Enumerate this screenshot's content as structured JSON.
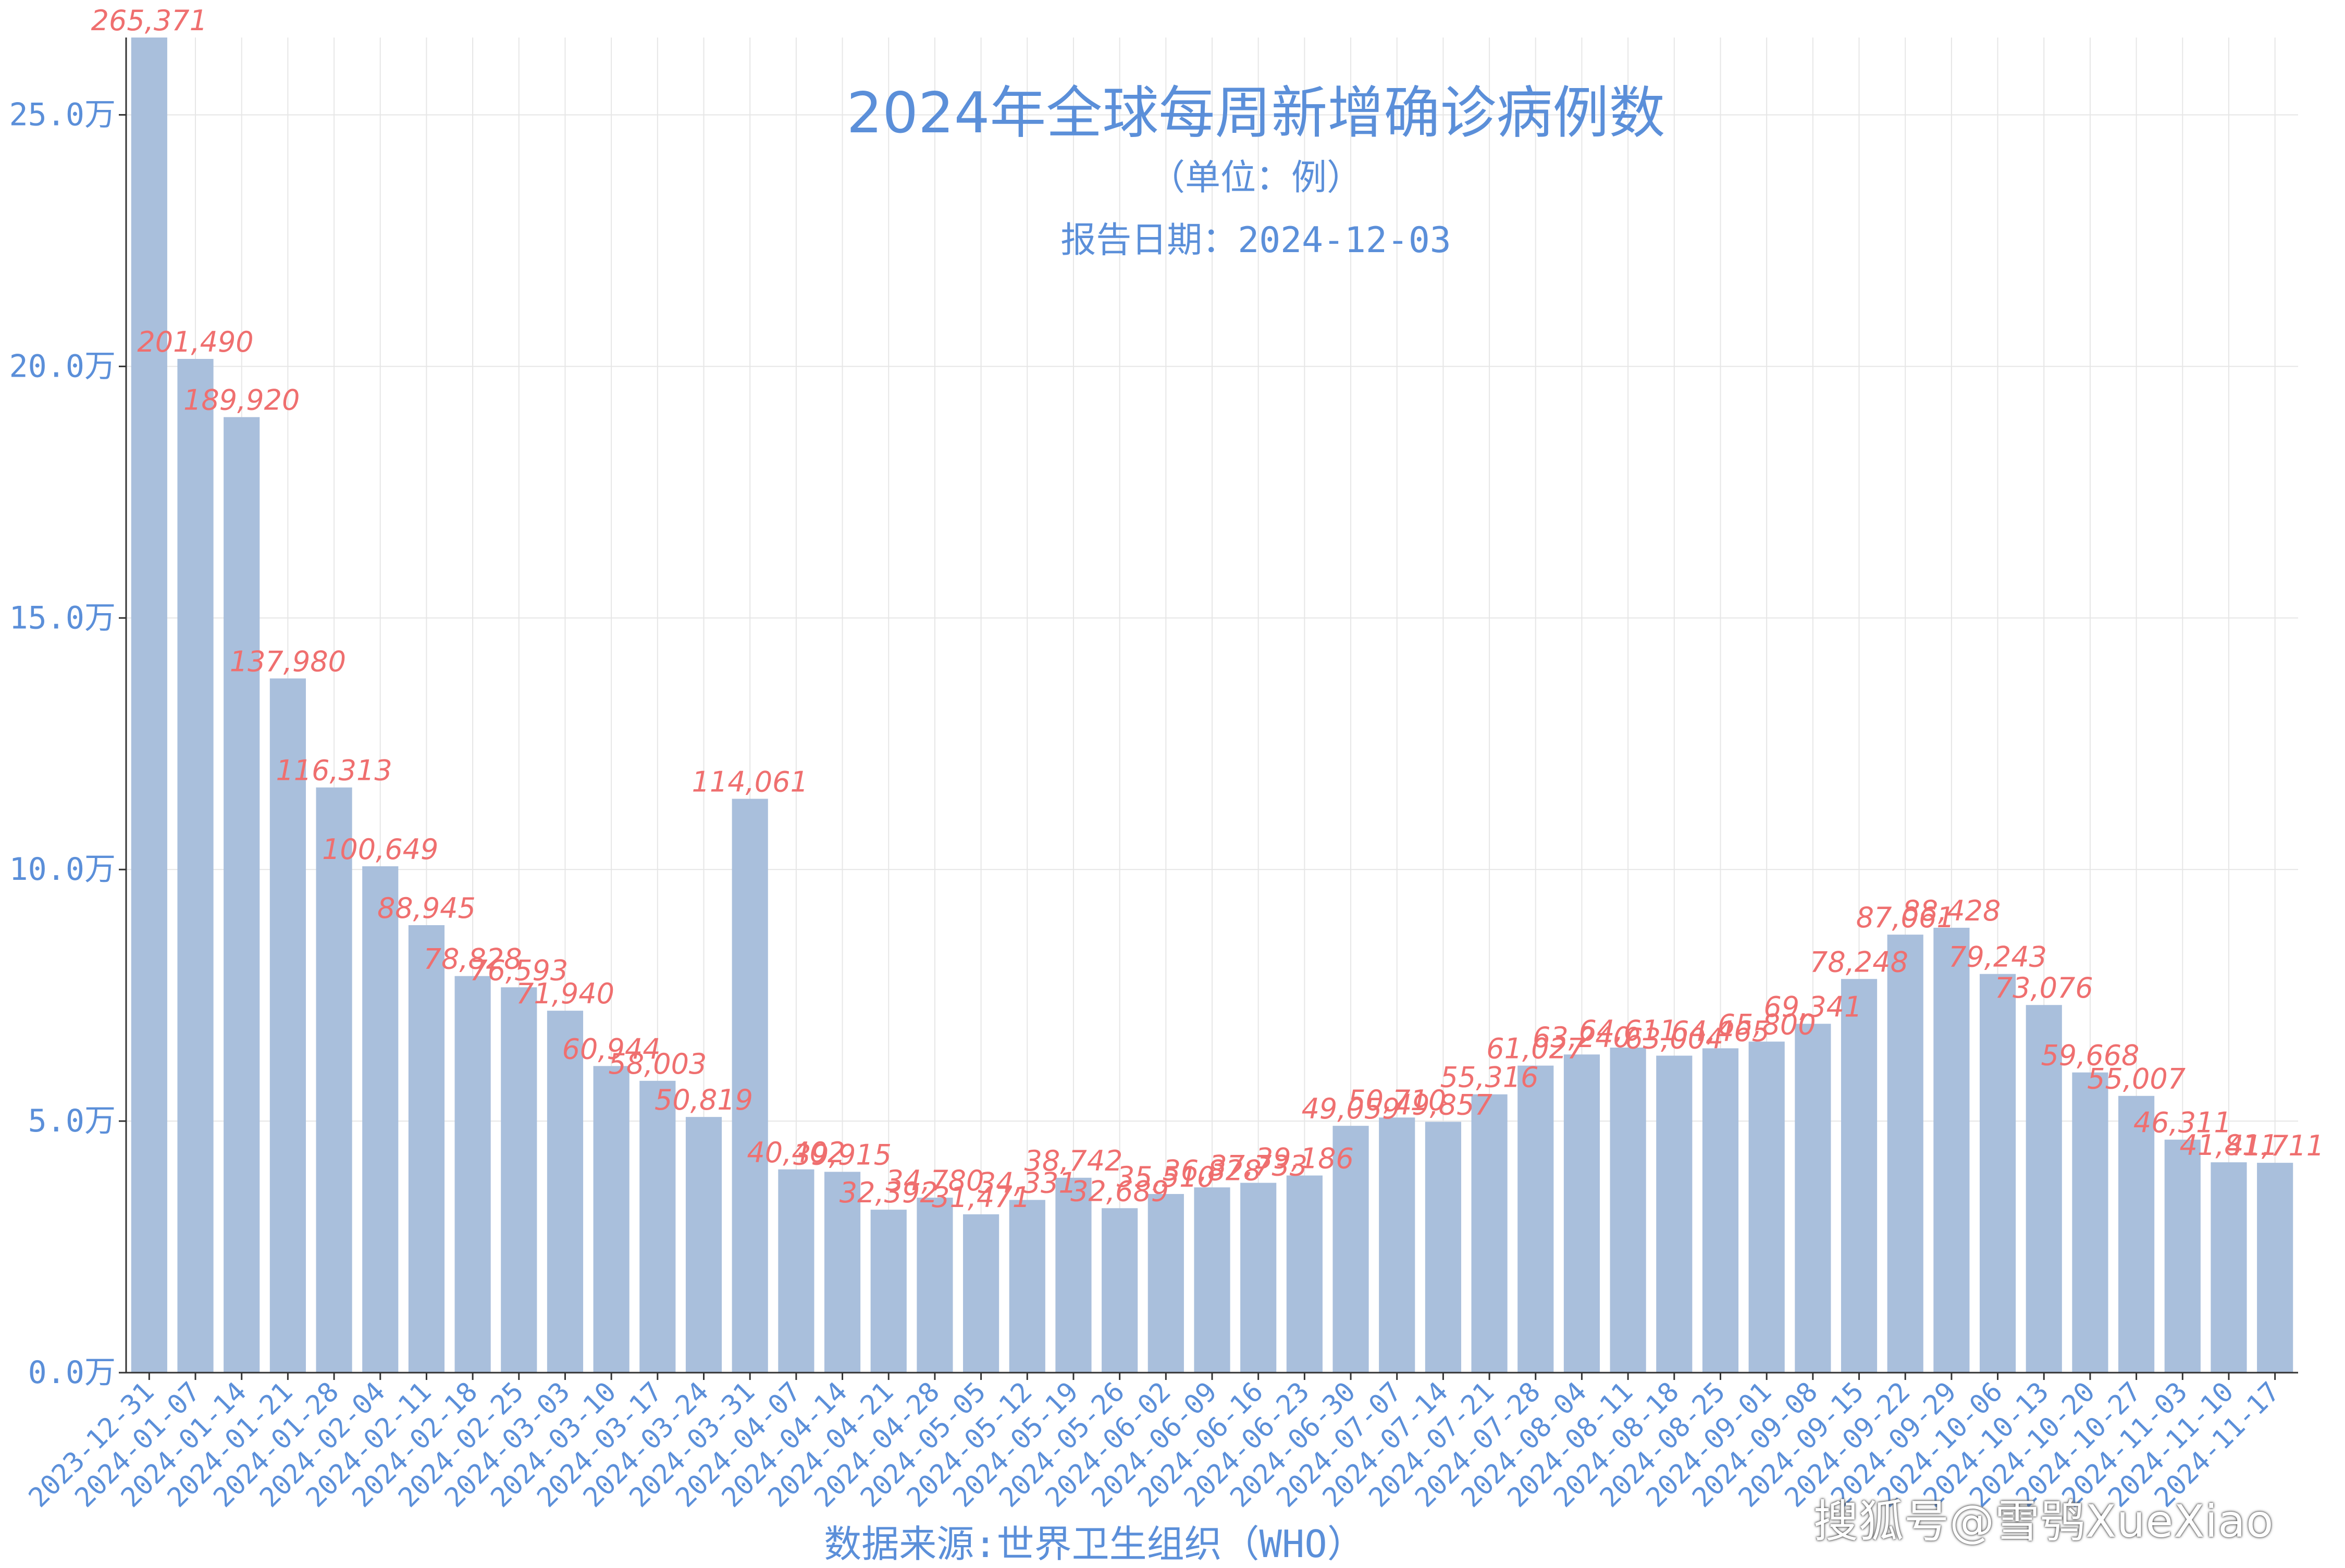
{
  "header": {
    "title": "2024年全球每周新增确诊病例数",
    "subtitle": "（单位：例）",
    "report_date": "报告日期：2024-12-03"
  },
  "footer": {
    "source": "数据来源:世界卫生组织（WHO）",
    "watermark": "搜狐号@雪鸮XueXiao"
  },
  "colors": {
    "bar": "#a9bfdc",
    "label": "#ef6f6f",
    "axis_text": "#5b8fd9",
    "grid": "#e6e6e6"
  },
  "chart_data": {
    "type": "bar",
    "title": "2024年全球每周新增确诊病例数",
    "subtitle": "（单位：例）",
    "ylim": [
      0,
      265371
    ],
    "yticks": [
      0,
      50000,
      100000,
      150000,
      200000,
      250000
    ],
    "ytick_labels": [
      "0.0万",
      "5.0万",
      "10.0万",
      "15.0万",
      "20.0万",
      "25.0万"
    ],
    "grid": true,
    "categories": [
      "2023-12-31",
      "2024-01-07",
      "2024-01-14",
      "2024-01-21",
      "2024-01-28",
      "2024-02-04",
      "2024-02-11",
      "2024-02-18",
      "2024-02-25",
      "2024-03-03",
      "2024-03-10",
      "2024-03-17",
      "2024-03-24",
      "2024-03-31",
      "2024-04-07",
      "2024-04-14",
      "2024-04-21",
      "2024-04-28",
      "2024-05-05",
      "2024-05-12",
      "2024-05-19",
      "2024-05-26",
      "2024-06-02",
      "2024-06-09",
      "2024-06-16",
      "2024-06-23",
      "2024-06-30",
      "2024-07-07",
      "2024-07-14",
      "2024-07-21",
      "2024-07-28",
      "2024-08-04",
      "2024-08-11",
      "2024-08-18",
      "2024-08-25",
      "2024-09-01",
      "2024-09-08",
      "2024-09-15",
      "2024-09-22",
      "2024-09-29",
      "2024-10-06",
      "2024-10-13",
      "2024-10-20",
      "2024-10-27",
      "2024-11-03",
      "2024-11-10",
      "2024-11-17"
    ],
    "values": [
      265371,
      201490,
      189920,
      137980,
      116313,
      100649,
      88945,
      78828,
      76593,
      71940,
      60944,
      58003,
      50819,
      114061,
      40402,
      39915,
      32392,
      34780,
      31471,
      34331,
      38742,
      32689,
      35510,
      36828,
      37733,
      39186,
      49059,
      50710,
      49857,
      55316,
      61027,
      63240,
      64611,
      63004,
      64465,
      65800,
      69341,
      78248,
      87061,
      88428,
      79243,
      73076,
      59668,
      55007,
      46311,
      41811,
      41711
    ],
    "value_labels": [
      "265,371",
      "201,490",
      "189,920",
      "137,980",
      "116,313",
      "100,649",
      "88,945",
      "78,828",
      "76,593",
      "71,940",
      "60,944",
      "58,003",
      "50,819",
      "114,061",
      "40,402",
      "39,915",
      "32,392",
      "34,780",
      "31,471",
      "34,331",
      "38,742",
      "32,689",
      "35,510",
      "36,828",
      "37,733",
      "39,186",
      "49,059",
      "50,710",
      "49,857",
      "55,316",
      "61,027",
      "63,240",
      "64,611",
      "63,004",
      "64,465",
      "65,800",
      "69,341",
      "78,248",
      "87,061",
      "88,428",
      "79,243",
      "73,076",
      "59,668",
      "55,007",
      "46,311",
      "41,811",
      "41,711"
    ]
  }
}
